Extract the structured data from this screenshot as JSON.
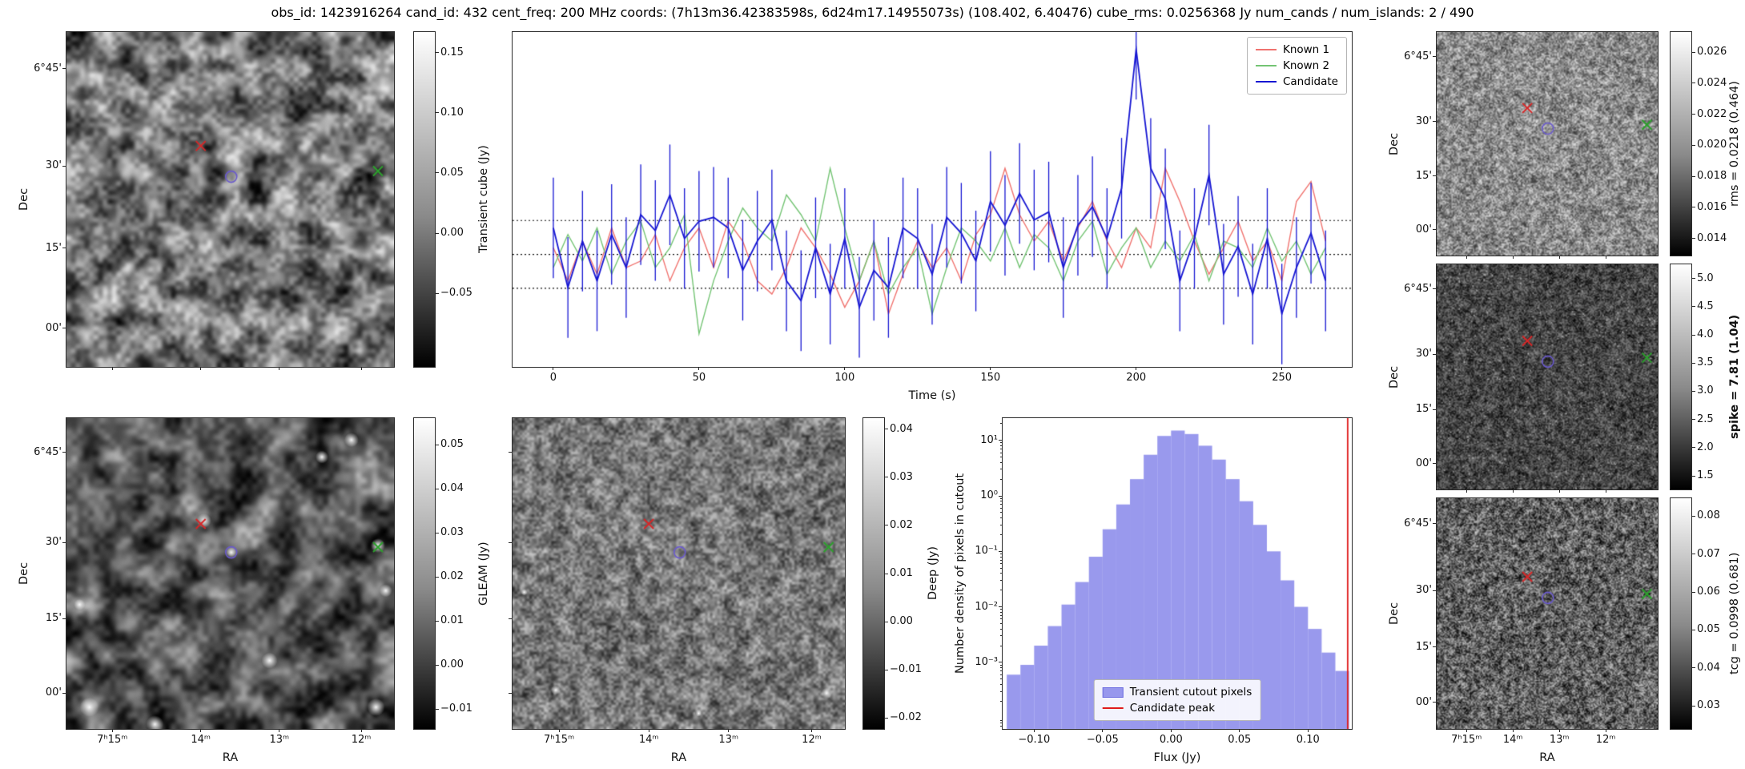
{
  "title": "obs_id: 1423916264 cand_id: 432 cent_freq: 200 MHz coords: (7h13m36.42383598s, 6d24m17.14955073s) (108.402, 6.40476) cube_rms: 0.0256368 Jy num_cands / num_islands: 2 / 490",
  "axis_labels": {
    "ra": "RA",
    "dec": "Dec"
  },
  "dec_ticks": [
    "6°45'",
    "30'",
    "15'",
    "00'"
  ],
  "ra_ticks": [
    "7ʰ15ᵐ",
    "14ᵐ",
    "13ᵐ",
    "12ᵐ"
  ],
  "sky_markers": [
    {
      "name": "known-source-1-marker",
      "shape": "x",
      "color": "#d62728",
      "fx": 0.41,
      "fy": 0.34
    },
    {
      "name": "candidate-marker",
      "shape": "circle",
      "color": "#6a5acd",
      "fx": 0.503,
      "fy": 0.432
    },
    {
      "name": "known-source-2-marker",
      "shape": "x",
      "color": "#2ca02c",
      "fx": 0.951,
      "fy": 0.415
    }
  ],
  "colorbars": {
    "transient": {
      "label": "Transient cube (Jy)",
      "vmin": -0.111,
      "vmax": 0.167,
      "tick_values": [
        0.15,
        0.1,
        0.05,
        0.0,
        -0.05
      ],
      "tick_labels": [
        "0.15",
        "0.10",
        "0.05",
        "0.00",
        "−0.05"
      ]
    },
    "gleam": {
      "label": "GLEAM (Jy)",
      "vmin": -0.0145,
      "vmax": 0.056,
      "tick_values": [
        0.05,
        0.04,
        0.03,
        0.02,
        0.01,
        0.0,
        -0.01
      ],
      "tick_labels": [
        "0.05",
        "0.04",
        "0.03",
        "0.02",
        "0.01",
        "0.00",
        "−0.01"
      ]
    },
    "deep": {
      "label": "Deep (Jy)",
      "vmin": -0.0223,
      "vmax": 0.0423,
      "tick_values": [
        0.04,
        0.03,
        0.02,
        0.01,
        0.0,
        -0.01,
        -0.02
      ],
      "tick_labels": [
        "0.04",
        "0.03",
        "0.02",
        "0.01",
        "0.00",
        "−0.01",
        "−0.02"
      ]
    },
    "rms": {
      "label": "rms = 0.0218 (0.464)",
      "vmin": 0.0129,
      "vmax": 0.0273,
      "tick_values": [
        0.026,
        0.024,
        0.022,
        0.02,
        0.018,
        0.016,
        0.014
      ],
      "tick_labels": [
        "0.026",
        "0.024",
        "0.022",
        "0.020",
        "0.018",
        "0.016",
        "0.014"
      ]
    },
    "spike": {
      "label": "spike = 7.81 (1.04)",
      "vmin": 1.26,
      "vmax": 5.25,
      "tick_values": [
        5.0,
        4.5,
        4.0,
        3.5,
        3.0,
        2.5,
        2.0,
        1.5
      ],
      "tick_labels": [
        "5.0",
        "4.5",
        "4.0",
        "3.5",
        "3.0",
        "2.5",
        "2.0",
        "1.5"
      ]
    },
    "tcg": {
      "label": "tcg = 0.0998 (0.681)",
      "vmin": 0.0239,
      "vmax": 0.0847,
      "tick_values": [
        0.08,
        0.07,
        0.06,
        0.05,
        0.04,
        0.03
      ],
      "tick_labels": [
        "0.08",
        "0.07",
        "0.06",
        "0.05",
        "0.04",
        "0.03"
      ]
    }
  },
  "chart_data": [
    {
      "type": "line",
      "title": "",
      "xlabel": "Time (s)",
      "ylabel": "",
      "xlim": [
        -14,
        274
      ],
      "ylim": [
        -0.085,
        0.168
      ],
      "x_ticks": [
        {
          "v": 0,
          "label": "0"
        },
        {
          "v": 50,
          "label": "50"
        },
        {
          "v": 100,
          "label": "100"
        },
        {
          "v": 150,
          "label": "150"
        },
        {
          "v": 200,
          "label": "200"
        },
        {
          "v": 250,
          "label": "250"
        }
      ],
      "hlines": [
        0.0256,
        0.0,
        -0.0256
      ],
      "legend_position": "top-right",
      "x": [
        0,
        5,
        10,
        15,
        20,
        25,
        30,
        35,
        40,
        45,
        50,
        55,
        60,
        65,
        70,
        75,
        80,
        85,
        90,
        95,
        100,
        105,
        110,
        115,
        120,
        125,
        130,
        135,
        140,
        145,
        150,
        155,
        160,
        165,
        170,
        175,
        180,
        185,
        190,
        195,
        200,
        205,
        210,
        215,
        220,
        225,
        230,
        235,
        240,
        245,
        250,
        255,
        260,
        265
      ],
      "series": [
        {
          "name": "Known 1",
          "color": "#f0736f",
          "values": [
            0.005,
            -0.02,
            0.01,
            -0.015,
            0.02,
            -0.01,
            -0.005,
            0.015,
            -0.02,
            0.005,
            0.02,
            -0.01,
            0.025,
            0.01,
            -0.02,
            -0.03,
            -0.01,
            0.02,
            0.005,
            -0.015,
            -0.04,
            -0.02,
            0.01,
            -0.045,
            -0.015,
            0.01,
            -0.01,
            0.005,
            -0.02,
            0.015,
            0.03,
            0.065,
            0.03,
            0.01,
            0.025,
            -0.005,
            0.02,
            0.04,
            0.01,
            -0.01,
            0.02,
            0.005,
            0.065,
            0.04,
            0.01,
            -0.015,
            0.005,
            0.025,
            -0.005,
            0.01,
            -0.02,
            0.04,
            0.055,
            0.01
          ]
        },
        {
          "name": "Known 2",
          "color": "#74c474",
          "values": [
            -0.01,
            0.015,
            -0.005,
            0.02,
            -0.015,
            0.01,
            0.025,
            -0.01,
            0.005,
            0.03,
            -0.06,
            -0.02,
            0.01,
            0.035,
            0.02,
            0.01,
            0.045,
            0.03,
            0.01,
            0.065,
            0.02,
            -0.02,
            0.01,
            -0.03,
            -0.01,
            0.005,
            -0.045,
            -0.01,
            0.02,
            0.01,
            -0.005,
            0.02,
            -0.01,
            0.015,
            0.005,
            -0.02,
            0.01,
            0.025,
            -0.015,
            0.005,
            0.02,
            -0.01,
            0.01,
            -0.005,
            0.015,
            -0.02,
            0.01,
            0.005,
            -0.01,
            0.02,
            -0.005,
            0.01,
            -0.015,
            0.005
          ]
        },
        {
          "name": "Candidate",
          "color": "#1616d2",
          "yerr": 0.038,
          "values": [
            0.02,
            -0.025,
            0.01,
            -0.02,
            0.015,
            -0.01,
            0.03,
            0.018,
            0.045,
            0.012,
            0.025,
            0.028,
            0.02,
            -0.012,
            0.01,
            0.026,
            -0.02,
            -0.035,
            0.005,
            -0.03,
            0.012,
            -0.04,
            -0.012,
            -0.025,
            0.02,
            0.012,
            -0.015,
            0.028,
            0.016,
            -0.005,
            0.04,
            0.022,
            0.046,
            0.026,
            0.032,
            -0.01,
            0.022,
            0.036,
            0.012,
            0.05,
            0.155,
            0.065,
            0.042,
            -0.02,
            0.012,
            0.06,
            -0.015,
            0.006,
            -0.03,
            0.012,
            -0.045,
            -0.01,
            0.016,
            -0.02
          ]
        }
      ]
    },
    {
      "type": "bar",
      "title": "",
      "xlabel": "Flux (Jy)",
      "ylabel": "Number density of pixels in cutout",
      "xlim": [
        -0.123,
        0.132
      ],
      "ylog": true,
      "ylim_exp": [
        -4.2,
        1.4
      ],
      "x_ticks": [
        {
          "v": -0.1,
          "label": "−0.10"
        },
        {
          "v": -0.05,
          "label": "−0.05"
        },
        {
          "v": 0.0,
          "label": "0.00"
        },
        {
          "v": 0.05,
          "label": "0.05"
        },
        {
          "v": 0.1,
          "label": "0.10"
        }
      ],
      "y_ticks": [
        {
          "exp": 1,
          "label": "10¹"
        },
        {
          "exp": 0,
          "label": "10⁰"
        },
        {
          "exp": -1,
          "label": "10⁻¹"
        },
        {
          "exp": -2,
          "label": "10⁻²"
        },
        {
          "exp": -3,
          "label": "10⁻³"
        }
      ],
      "bin_width": 0.01,
      "bin_centers": [
        -0.115,
        -0.105,
        -0.095,
        -0.085,
        -0.075,
        -0.065,
        -0.055,
        -0.045,
        -0.035,
        -0.025,
        -0.015,
        -0.005,
        0.005,
        0.015,
        0.025,
        0.035,
        0.045,
        0.055,
        0.065,
        0.075,
        0.085,
        0.095,
        0.105,
        0.115,
        0.125
      ],
      "densities": [
        0.0006,
        0.0009,
        0.002,
        0.0045,
        0.011,
        0.028,
        0.08,
        0.25,
        0.7,
        2.0,
        5.5,
        12,
        15,
        13,
        8,
        4.5,
        2.0,
        0.8,
        0.3,
        0.1,
        0.03,
        0.01,
        0.004,
        0.0015,
        0.0007
      ],
      "bar_color": "#7f7fe8",
      "vline": {
        "x": 0.129,
        "color": "#e01b1b"
      },
      "legend": [
        "Transient cutout pixels",
        "Candidate peak"
      ]
    }
  ]
}
